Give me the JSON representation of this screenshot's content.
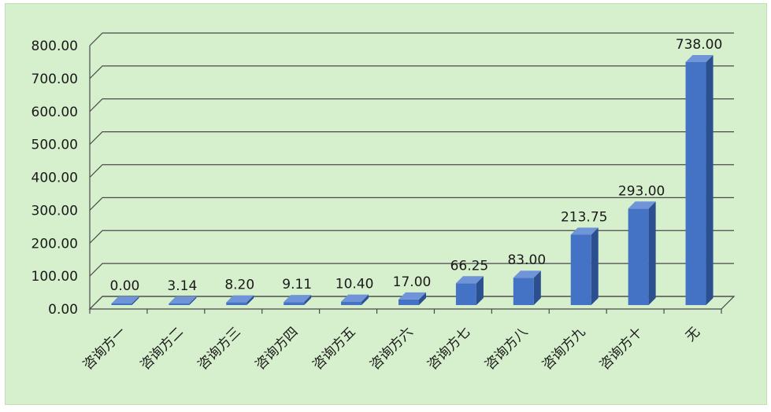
{
  "chart_data": {
    "type": "bar",
    "categories": [
      "咨询方一",
      "咨询方二",
      "咨询方三",
      "咨询方四",
      "咨询方五",
      "咨询方六",
      "咨询方七",
      "咨询方八",
      "咨询方九",
      "咨询方十",
      "无"
    ],
    "values": [
      0.0,
      3.14,
      8.2,
      9.11,
      10.4,
      17.0,
      66.25,
      83.0,
      213.75,
      293.0,
      738.0
    ],
    "value_labels": [
      "0.00",
      "3.14",
      "8.20",
      "9.11",
      "10.40",
      "17.00",
      "66.25",
      "83.00",
      "213.75",
      "293.00",
      "738.00"
    ],
    "y_ticks": [
      "0.00",
      "100.00",
      "200.00",
      "300.00",
      "400.00",
      "500.00",
      "600.00",
      "700.00",
      "800.00"
    ],
    "ylim": [
      0,
      800
    ],
    "grid": true,
    "style_3d": true
  },
  "colors": {
    "background": "#d6efcc",
    "bar_front": "#4472c4",
    "bar_side": "#2b4f8f",
    "bar_top": "#6f94d8",
    "grid": "#4a4a4a"
  }
}
